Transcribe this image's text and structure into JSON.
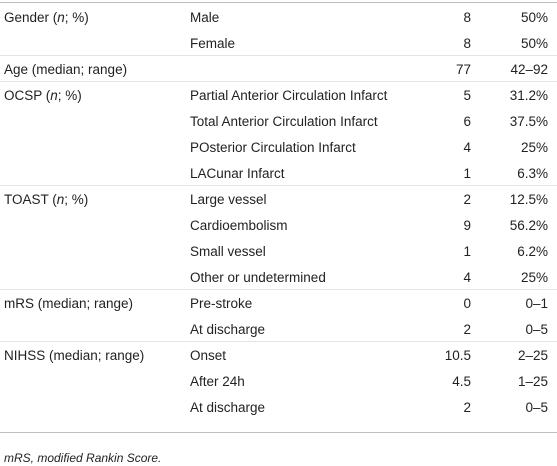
{
  "table": {
    "rows": [
      [
        [
          "Gender (",
          "n",
          "; %)"
        ],
        "Male",
        "8",
        "50%"
      ],
      [
        null,
        "Female",
        "8",
        "50%"
      ],
      [
        [
          "Age (median; range)"
        ],
        null,
        "77",
        "42–92"
      ],
      [
        [
          "OCSP (",
          "n",
          "; %)"
        ],
        "Partial Anterior Circulation Infarct",
        "5",
        "31.2%"
      ],
      [
        null,
        "Total Anterior Circulation Infarct",
        "6",
        "37.5%"
      ],
      [
        null,
        "POsterior Circulation Infarct",
        "4",
        "25%"
      ],
      [
        null,
        "LACunar Infarct",
        "1",
        "6.3%"
      ],
      [
        [
          "TOAST (",
          "n",
          "; %)"
        ],
        "Large vessel",
        "2",
        "12.5%"
      ],
      [
        null,
        "Cardioembolism",
        "9",
        "56.2%"
      ],
      [
        null,
        "Small vessel",
        "1",
        "6.2%"
      ],
      [
        null,
        "Other or undetermined",
        "4",
        "25%"
      ],
      [
        [
          "mRS (median; range)"
        ],
        "Pre-stroke",
        "0",
        "0–1"
      ],
      [
        null,
        "At discharge",
        "2",
        "0–5"
      ],
      [
        [
          "NIHSS (median; range)"
        ],
        "Onset",
        "10.5",
        "2–25"
      ],
      [
        null,
        "After 24h",
        "4.5",
        "1–25"
      ],
      [
        null,
        "At discharge",
        "2",
        "0–5"
      ]
    ],
    "footnote": "mRS, modified Rankin Score."
  }
}
